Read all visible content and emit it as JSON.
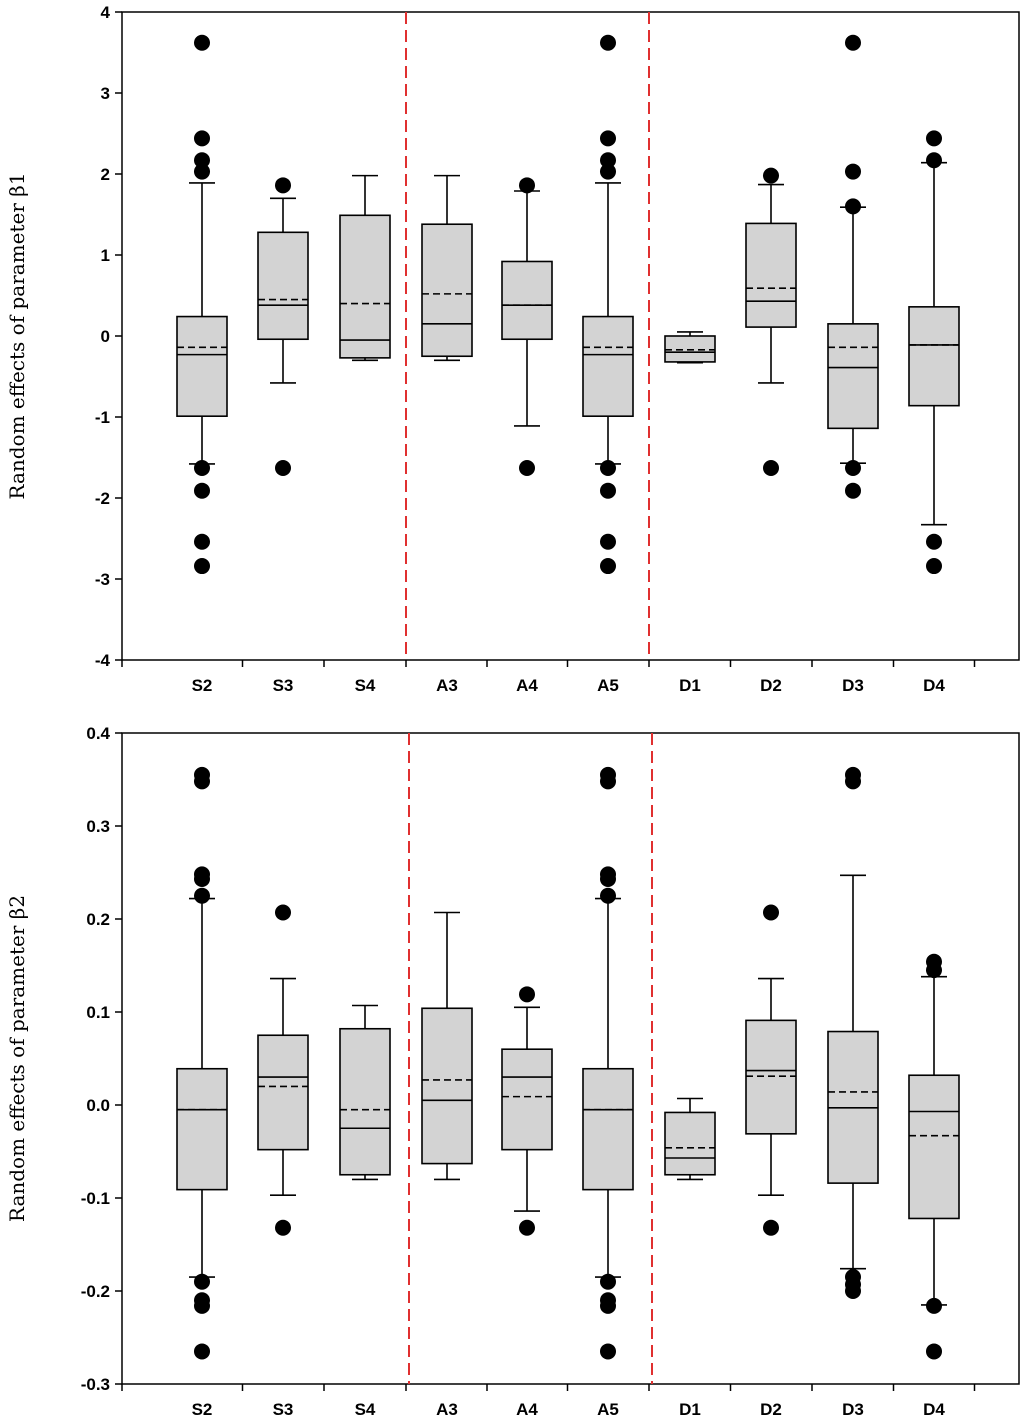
{
  "chart_data": [
    {
      "type": "box",
      "title": "",
      "xlabel": "",
      "ylabel": "Random effects of parameter  β1",
      "ylim": [
        -4,
        4
      ],
      "yticks": [
        "4",
        "3",
        "2",
        "1",
        "0",
        "-1",
        "-2",
        "-3",
        "-4"
      ],
      "ytick_values": [
        4,
        3,
        2,
        1,
        0,
        -1,
        -2,
        -3,
        -4
      ],
      "categories": [
        "S2",
        "S3",
        "S4",
        "A3",
        "A4",
        "A5",
        "D1",
        "D2",
        "D3",
        "D4"
      ],
      "group_dividers_after": [
        3,
        6
      ],
      "colors": {
        "box_fill": "#d3d3d3",
        "divider": "#e03030",
        "line": "#000000"
      },
      "boxes": [
        {
          "category": "S2",
          "q1": -0.99,
          "median": -0.23,
          "mean": -0.14,
          "q3": 0.24,
          "whisker_low": -1.58,
          "whisker_high": 1.89,
          "outliers": [
            3.62,
            2.44,
            2.17,
            2.03,
            -1.63,
            -1.91,
            -2.54,
            -2.84
          ]
        },
        {
          "category": "S3",
          "q1": -0.04,
          "median": 0.38,
          "mean": 0.45,
          "q3": 1.28,
          "whisker_low": -0.58,
          "whisker_high": 1.7,
          "outliers": [
            1.86,
            -1.63
          ]
        },
        {
          "category": "S4",
          "q1": -0.27,
          "median": -0.05,
          "mean": 0.4,
          "q3": 1.49,
          "whisker_low": -0.3,
          "whisker_high": 1.98,
          "outliers": []
        },
        {
          "category": "A3",
          "q1": -0.25,
          "median": 0.15,
          "mean": 0.52,
          "q3": 1.38,
          "whisker_low": -0.3,
          "whisker_high": 1.98,
          "outliers": []
        },
        {
          "category": "A4",
          "q1": -0.04,
          "median": 0.38,
          "mean": 0.38,
          "q3": 0.92,
          "whisker_low": -1.11,
          "whisker_high": 1.79,
          "outliers": [
            1.86,
            -1.63
          ]
        },
        {
          "category": "A5",
          "q1": -0.99,
          "median": -0.23,
          "mean": -0.14,
          "q3": 0.24,
          "whisker_low": -1.58,
          "whisker_high": 1.89,
          "outliers": [
            3.62,
            2.44,
            2.17,
            2.03,
            -1.63,
            -1.91,
            -2.54,
            -2.84
          ]
        },
        {
          "category": "D1",
          "q1": -0.32,
          "median": -0.2,
          "mean": -0.17,
          "q3": 0.0,
          "whisker_low": -0.33,
          "whisker_high": 0.05,
          "outliers": []
        },
        {
          "category": "D2",
          "q1": 0.11,
          "median": 0.43,
          "mean": 0.59,
          "q3": 1.39,
          "whisker_low": -0.58,
          "whisker_high": 1.87,
          "outliers": [
            1.98,
            -1.63
          ]
        },
        {
          "category": "D3",
          "q1": -1.14,
          "median": -0.39,
          "mean": -0.14,
          "q3": 0.15,
          "whisker_low": -1.57,
          "whisker_high": 1.59,
          "outliers": [
            3.62,
            2.03,
            1.6,
            -1.63,
            -1.91
          ]
        },
        {
          "category": "D4",
          "q1": -0.86,
          "median": -0.11,
          "mean": -0.11,
          "q3": 0.36,
          "whisker_low": -2.33,
          "whisker_high": 2.14,
          "outliers": [
            2.44,
            2.17,
            -2.54,
            -2.84
          ]
        }
      ]
    },
    {
      "type": "box",
      "title": "",
      "xlabel": "",
      "ylabel": "Random effects of parameter  β2",
      "ylim": [
        -0.3,
        0.4
      ],
      "yticks": [
        "0.4",
        "0.3",
        "0.2",
        "0.1",
        "0.0",
        "-0.1",
        "-0.2",
        "-0.3"
      ],
      "ytick_values": [
        0.4,
        0.3,
        0.2,
        0.1,
        0.0,
        -0.1,
        -0.2,
        -0.3
      ],
      "categories": [
        "S2",
        "S3",
        "S4",
        "A3",
        "A4",
        "A5",
        "D1",
        "D2",
        "D3",
        "D4"
      ],
      "group_dividers_after": [
        3,
        6
      ],
      "colors": {
        "box_fill": "#d3d3d3",
        "divider": "#e03030",
        "line": "#000000"
      },
      "boxes": [
        {
          "category": "S2",
          "q1": -0.091,
          "median": -0.005,
          "mean": -0.005,
          "q3": 0.039,
          "whisker_low": -0.185,
          "whisker_high": 0.222,
          "outliers": [
            0.355,
            0.348,
            0.248,
            0.243,
            0.225,
            -0.19,
            -0.21,
            -0.216,
            -0.265
          ]
        },
        {
          "category": "S3",
          "q1": -0.048,
          "median": 0.03,
          "mean": 0.02,
          "q3": 0.075,
          "whisker_low": -0.097,
          "whisker_high": 0.136,
          "outliers": [
            0.207,
            -0.132
          ]
        },
        {
          "category": "S4",
          "q1": -0.075,
          "median": -0.025,
          "mean": -0.005,
          "q3": 0.082,
          "whisker_low": -0.08,
          "whisker_high": 0.107,
          "outliers": []
        },
        {
          "category": "A3",
          "q1": -0.063,
          "median": 0.005,
          "mean": 0.027,
          "q3": 0.104,
          "whisker_low": -0.08,
          "whisker_high": 0.207,
          "outliers": []
        },
        {
          "category": "A4",
          "q1": -0.048,
          "median": 0.03,
          "mean": 0.009,
          "q3": 0.06,
          "whisker_low": -0.114,
          "whisker_high": 0.105,
          "outliers": [
            0.119,
            -0.132
          ]
        },
        {
          "category": "A5",
          "q1": -0.091,
          "median": -0.005,
          "mean": -0.005,
          "q3": 0.039,
          "whisker_low": -0.185,
          "whisker_high": 0.222,
          "outliers": [
            0.355,
            0.348,
            0.248,
            0.243,
            0.225,
            -0.19,
            -0.21,
            -0.216,
            -0.265
          ]
        },
        {
          "category": "D1",
          "q1": -0.075,
          "median": -0.057,
          "mean": -0.046,
          "q3": -0.008,
          "whisker_low": -0.08,
          "whisker_high": 0.007,
          "outliers": []
        },
        {
          "category": "D2",
          "q1": -0.031,
          "median": 0.037,
          "mean": 0.031,
          "q3": 0.091,
          "whisker_low": -0.097,
          "whisker_high": 0.136,
          "outliers": [
            0.207,
            -0.132
          ]
        },
        {
          "category": "D3",
          "q1": -0.084,
          "median": -0.003,
          "mean": 0.014,
          "q3": 0.079,
          "whisker_low": -0.176,
          "whisker_high": 0.247,
          "outliers": [
            0.355,
            0.348,
            -0.185,
            -0.193,
            -0.2
          ]
        },
        {
          "category": "D4",
          "q1": -0.122,
          "median": -0.007,
          "mean": -0.033,
          "q3": 0.032,
          "whisker_low": -0.215,
          "whisker_high": 0.138,
          "outliers": [
            0.154,
            0.145,
            -0.216,
            -0.265
          ]
        }
      ]
    }
  ]
}
